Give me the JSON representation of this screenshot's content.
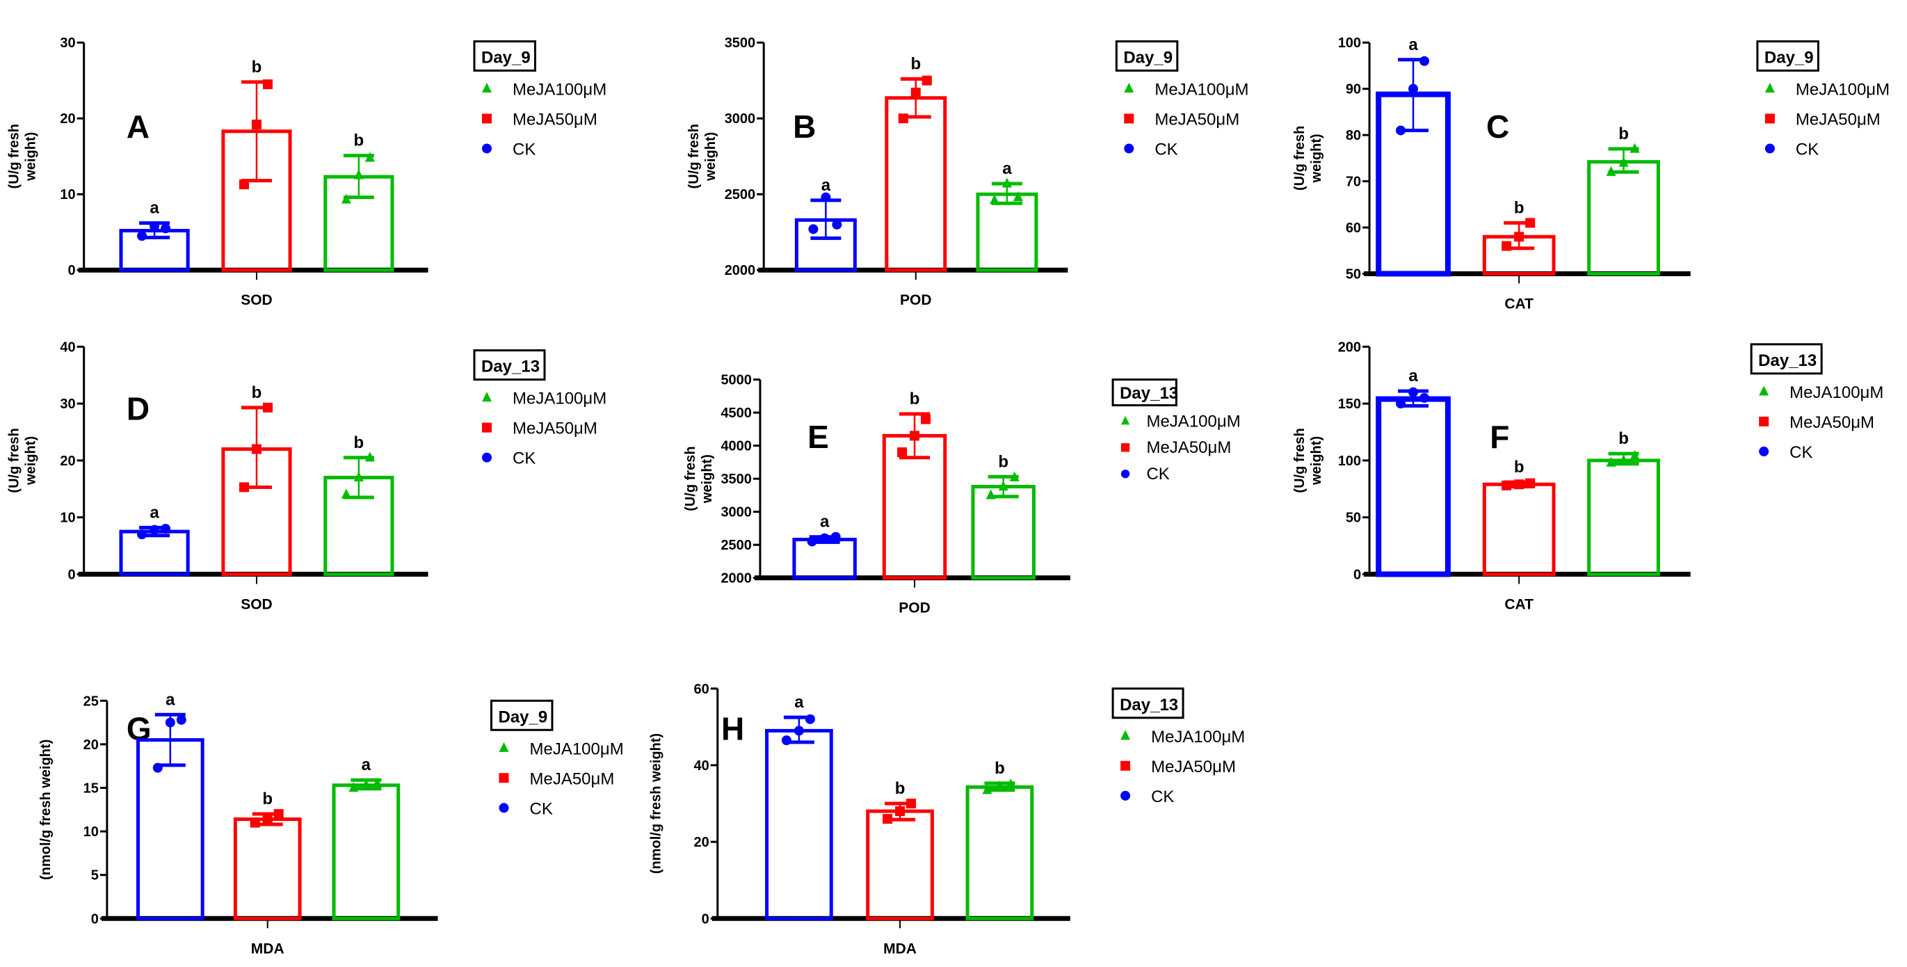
{
  "colors": {
    "CK": "#0000ff",
    "MeJA50": "#ff0000",
    "MeJA100": "#00bb00",
    "axis": "#000000"
  },
  "chart_data": [
    {
      "type": "bar",
      "panel": "A",
      "xlabel": "SOD",
      "ylabel": [
        "(U/g fresh",
        "weight)"
      ],
      "legend_title": "Day_9",
      "ylim": [
        0,
        30
      ],
      "yticks": [
        0,
        10,
        20,
        30
      ],
      "series": [
        {
          "name": "CK",
          "mean": 5.2,
          "err": [
            4.3,
            6.2
          ],
          "points": [
            4.5,
            5.8,
            5.5
          ],
          "letter": "a"
        },
        {
          "name": "MeJA50μM",
          "mean": 18.3,
          "err": [
            11.8,
            24.8
          ],
          "points": [
            11.3,
            19.2,
            24.5
          ],
          "letter": "b"
        },
        {
          "name": "MeJA100μM",
          "mean": 12.3,
          "err": [
            9.6,
            15.1
          ],
          "points": [
            9.3,
            12.5,
            14.8
          ],
          "letter": "b"
        }
      ]
    },
    {
      "type": "bar",
      "panel": "B",
      "xlabel": "POD",
      "ylabel": [
        "(U/g fresh",
        "weight)"
      ],
      "legend_title": "Day_9",
      "ylim": [
        2000,
        3500
      ],
      "yticks": [
        2000,
        2500,
        3000,
        3500
      ],
      "series": [
        {
          "name": "CK",
          "mean": 2330,
          "err": [
            2210,
            2460
          ],
          "points": [
            2270,
            2480,
            2300
          ],
          "letter": "a"
        },
        {
          "name": "MeJA50μM",
          "mean": 3135,
          "err": [
            3010,
            3260
          ],
          "points": [
            3000,
            3170,
            3250
          ],
          "letter": "b"
        },
        {
          "name": "MeJA100μM",
          "mean": 2500,
          "err": [
            2440,
            2570
          ],
          "points": [
            2460,
            2570,
            2480
          ],
          "letter": "a"
        }
      ]
    },
    {
      "type": "bar",
      "panel": "C",
      "xlabel": "CAT",
      "ylabel": [
        "(U/g fresh",
        "weight)"
      ],
      "legend_title": "Day_9",
      "ylim": [
        50,
        100
      ],
      "yticks": [
        50,
        60,
        70,
        80,
        90,
        100
      ],
      "series": [
        {
          "name": "CK",
          "mean": 88.8,
          "err": [
            81,
            96.3
          ],
          "points": [
            81,
            90,
            96
          ],
          "letter": "a"
        },
        {
          "name": "MeJA50μM",
          "mean": 58,
          "err": [
            55.5,
            61
          ],
          "points": [
            56,
            58,
            61
          ],
          "letter": "b"
        },
        {
          "name": "MeJA100μM",
          "mean": 74.2,
          "err": [
            72,
            77
          ],
          "points": [
            72,
            74,
            77
          ],
          "letter": "b"
        }
      ]
    },
    {
      "type": "bar",
      "panel": "D",
      "xlabel": "SOD",
      "ylabel": [
        "(U/g fresh",
        "weight)"
      ],
      "legend_title": "Day_13",
      "ylim": [
        0,
        40
      ],
      "yticks": [
        0,
        10,
        20,
        30,
        40
      ],
      "series": [
        {
          "name": "CK",
          "mean": 7.5,
          "err": [
            6.8,
            8.2
          ],
          "points": [
            7,
            7.8,
            8
          ],
          "letter": "a"
        },
        {
          "name": "MeJA50μM",
          "mean": 22,
          "err": [
            15.3,
            29.3
          ],
          "points": [
            15.3,
            22,
            29.3
          ],
          "letter": "b"
        },
        {
          "name": "MeJA100μM",
          "mean": 17,
          "err": [
            13.5,
            20.5
          ],
          "points": [
            14,
            17,
            20.5
          ],
          "letter": "b"
        }
      ]
    },
    {
      "type": "bar",
      "panel": "E",
      "xlabel": "POD",
      "ylabel": [
        "(U/g fresh",
        "weight)"
      ],
      "legend_title": "Day_13",
      "ylim": [
        2000,
        5000
      ],
      "yticks": [
        2000,
        2500,
        3000,
        3500,
        4000,
        4500,
        5000
      ],
      "series": [
        {
          "name": "CK",
          "mean": 2580,
          "err": [
            2540,
            2620
          ],
          "points": [
            2550,
            2600,
            2620
          ],
          "letter": "a"
        },
        {
          "name": "MeJA50μM",
          "mean": 4150,
          "err": [
            3820,
            4480
          ],
          "points": [
            3900,
            4150,
            4400
          ],
          "letter": "b"
        },
        {
          "name": "MeJA100μM",
          "mean": 3380,
          "err": [
            3230,
            3530
          ],
          "points": [
            3250,
            3380,
            3520
          ],
          "letter": "b"
        }
      ]
    },
    {
      "type": "bar",
      "panel": "F",
      "xlabel": "CAT",
      "ylabel": [
        "(U/g fresh",
        "weight)"
      ],
      "legend_title": "Day_13",
      "ylim": [
        0,
        200
      ],
      "yticks": [
        0,
        50,
        100,
        150,
        200
      ],
      "series": [
        {
          "name": "CK",
          "mean": 154,
          "err": [
            148,
            161
          ],
          "points": [
            150,
            160,
            155
          ],
          "letter": "a"
        },
        {
          "name": "MeJA50μM",
          "mean": 79,
          "err": [
            77,
            81
          ],
          "points": [
            78,
            79,
            80
          ],
          "letter": "b"
        },
        {
          "name": "MeJA100μM",
          "mean": 100,
          "err": [
            97,
            106
          ],
          "points": [
            98,
            100,
            104
          ],
          "letter": "b"
        }
      ]
    },
    {
      "type": "bar",
      "panel": "G",
      "xlabel": "MDA",
      "ylabel": [
        "(nmol/g fresh weight)"
      ],
      "legend_title": "Day_9",
      "ylim": [
        0,
        25
      ],
      "yticks": [
        0,
        5,
        10,
        15,
        20,
        25
      ],
      "series": [
        {
          "name": "CK",
          "mean": 20.5,
          "err": [
            17.6,
            23.4
          ],
          "points": [
            17.3,
            22.5,
            22.8
          ],
          "letter": "a"
        },
        {
          "name": "MeJA50μM",
          "mean": 11.4,
          "err": [
            10.8,
            12
          ],
          "points": [
            11,
            11.5,
            12
          ],
          "letter": "b"
        },
        {
          "name": "MeJA100μM",
          "mean": 15.3,
          "err": [
            14.9,
            15.9
          ],
          "points": [
            15,
            15.3,
            15.5
          ],
          "letter": "a"
        }
      ]
    },
    {
      "type": "bar",
      "panel": "H",
      "xlabel": "MDA",
      "ylabel": [
        "(nmol/g fresh weight)"
      ],
      "legend_title": "Day_13",
      "ylim": [
        0,
        60
      ],
      "yticks": [
        0,
        20,
        40,
        60
      ],
      "series": [
        {
          "name": "CK",
          "mean": 49,
          "err": [
            46,
            52.5
          ],
          "points": [
            46.5,
            49,
            52
          ],
          "letter": "a"
        },
        {
          "name": "MeJA50μM",
          "mean": 28,
          "err": [
            25.8,
            30
          ],
          "points": [
            26,
            28,
            30
          ],
          "letter": "b"
        },
        {
          "name": "MeJA100μM",
          "mean": 34.3,
          "err": [
            33.5,
            35.3
          ],
          "points": [
            33.5,
            34.5,
            35
          ],
          "letter": "b"
        }
      ]
    }
  ],
  "legend_order": [
    "MeJA100μM",
    "MeJA50μM",
    "CK"
  ]
}
